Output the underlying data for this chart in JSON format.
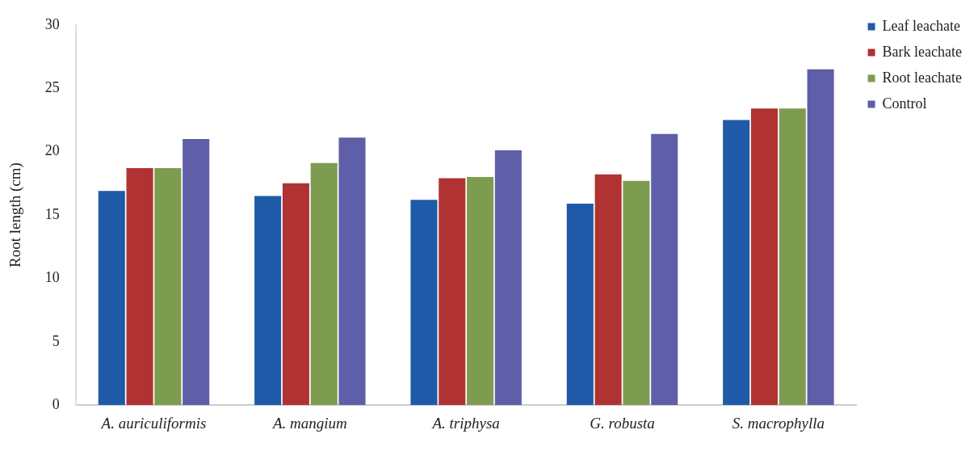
{
  "chart_data": {
    "type": "bar",
    "ylabel": "Root length (cm)",
    "categories": [
      "A. auriculiformis",
      "A. mangium",
      "A. triphysa",
      "G. robusta",
      "S. macrophylla"
    ],
    "series": [
      {
        "name": "Leaf leachate",
        "color": "#1f5aa8",
        "values": [
          16.9,
          16.5,
          16.2,
          15.9,
          22.5
        ]
      },
      {
        "name": "Bark leachate",
        "color": "#b03232",
        "values": [
          18.7,
          17.5,
          17.9,
          18.2,
          23.4
        ]
      },
      {
        "name": "Root leachate",
        "color": "#7e9c50",
        "values": [
          18.7,
          19.1,
          18.0,
          17.7,
          23.4
        ]
      },
      {
        "name": "Control",
        "color": "#5f5ea8",
        "values": [
          21.0,
          21.1,
          20.1,
          21.4,
          26.5
        ]
      }
    ],
    "ylim": [
      0,
      30
    ],
    "yticks": [
      0,
      5,
      10,
      15,
      20,
      25,
      30
    ],
    "grid": false,
    "legend": "right"
  }
}
